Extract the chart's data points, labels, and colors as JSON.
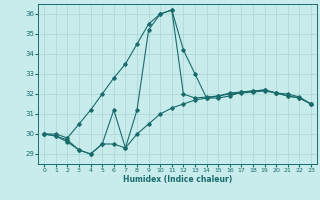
{
  "xlabel": "Humidex (Indice chaleur)",
  "background_color": "#c8ecec",
  "grid_color": "#aad4d4",
  "line_color": "#1a6b6b",
  "xlim": [
    -0.5,
    23.5
  ],
  "ylim": [
    28.5,
    36.5
  ],
  "yticks": [
    29,
    30,
    31,
    32,
    33,
    34,
    35,
    36
  ],
  "xticks": [
    0,
    1,
    2,
    3,
    4,
    5,
    6,
    7,
    8,
    9,
    10,
    11,
    12,
    13,
    14,
    15,
    16,
    17,
    18,
    19,
    20,
    21,
    22,
    23
  ],
  "series": [
    [
      30.0,
      29.9,
      29.6,
      29.2,
      29.0,
      29.5,
      29.5,
      29.3,
      30.0,
      30.5,
      31.0,
      31.3,
      31.5,
      31.7,
      31.8,
      31.9,
      32.0,
      32.05,
      32.1,
      32.15,
      32.05,
      31.9,
      31.8,
      31.5
    ],
    [
      30.0,
      29.9,
      29.7,
      29.2,
      29.0,
      29.5,
      31.2,
      29.3,
      31.2,
      35.2,
      36.0,
      36.2,
      34.2,
      33.0,
      31.8,
      31.8,
      31.9,
      32.1,
      32.15,
      32.2,
      32.05,
      31.9,
      31.8,
      31.5
    ],
    [
      30.0,
      30.0,
      29.8,
      30.5,
      31.2,
      32.0,
      32.8,
      33.5,
      34.5,
      35.5,
      36.0,
      36.2,
      32.0,
      31.8,
      31.85,
      31.9,
      32.05,
      32.1,
      32.15,
      32.2,
      32.05,
      32.0,
      31.85,
      31.5
    ]
  ]
}
